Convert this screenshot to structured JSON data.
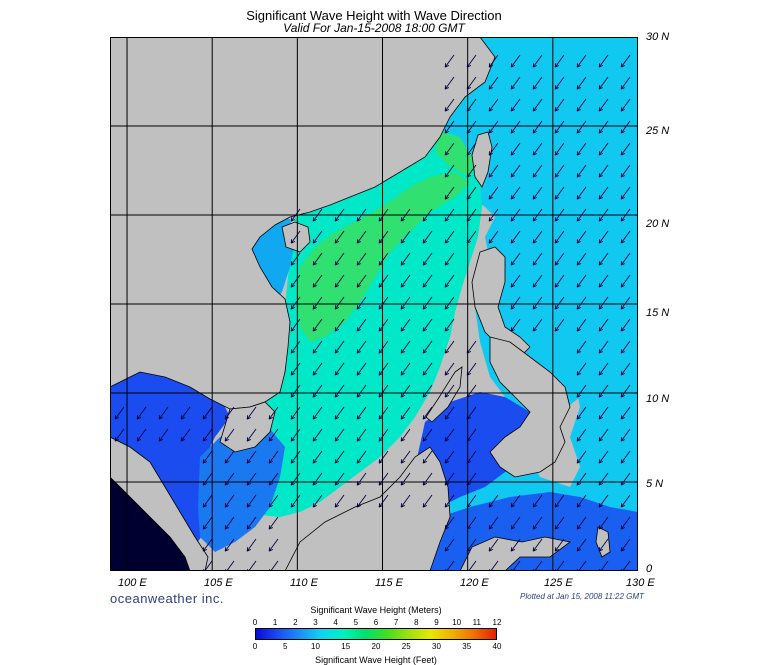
{
  "header": {
    "title": "Significant Wave Height with Wave Direction",
    "subtitle": "Valid For Jan-15-2008 18:00 GMT"
  },
  "map": {
    "lon_range": [
      99,
      130
    ],
    "lat_range": [
      0,
      30
    ],
    "lon_labels": [
      "100 E",
      "105 E",
      "110 E",
      "115 E",
      "120 E",
      "125 E",
      "130 E"
    ],
    "lat_labels": [
      "30 N",
      "25 N",
      "20 N",
      "15 N",
      "10 N",
      "5 N",
      "0"
    ],
    "land_color": "#c0c0c0",
    "wave_direction": "from northeast toward southwest"
  },
  "footer": {
    "brand": "oceanweather inc.",
    "plotted": "Plotted at Jan 15, 2008 11:22 GMT"
  },
  "colorbar": {
    "meters_title": "Significant Wave Height (Meters)",
    "feet_title": "Significant Wave Height (Feet)",
    "meters_ticks": [
      "0",
      "1",
      "2",
      "3",
      "4",
      "5",
      "6",
      "7",
      "8",
      "9",
      "10",
      "11",
      "12"
    ],
    "feet_ticks": [
      "0",
      "5",
      "10",
      "15",
      "20",
      "25",
      "30",
      "35",
      "40"
    ],
    "colors": [
      "#0a0ad8",
      "#1a4cf5",
      "#1a90f8",
      "#10d4f0",
      "#00f0c0",
      "#00e070",
      "#40e020",
      "#a0e010",
      "#e8e800",
      "#f0b000",
      "#f07000",
      "#e82000"
    ]
  }
}
